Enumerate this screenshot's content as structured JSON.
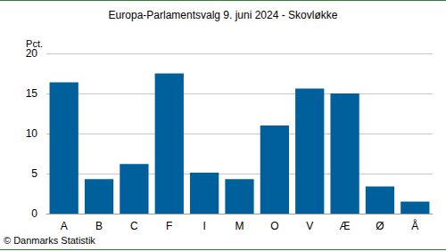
{
  "chart_data": {
    "type": "bar",
    "title": "Europa-Parlamentsvalg 9. juni 2024 - Skovløkke",
    "ylabel": "Pct.",
    "source": "© Danmarks Statistik",
    "categories": [
      "A",
      "B",
      "C",
      "F",
      "I",
      "M",
      "O",
      "V",
      "Æ",
      "Ø",
      "Å"
    ],
    "values": [
      16.4,
      4.3,
      6.2,
      17.5,
      5.1,
      4.3,
      11.0,
      15.6,
      15.0,
      3.4,
      1.5
    ],
    "color": "#00609c",
    "ylim": [
      0,
      20
    ],
    "yticks": [
      0,
      5,
      10,
      15,
      20
    ],
    "grid": true
  }
}
